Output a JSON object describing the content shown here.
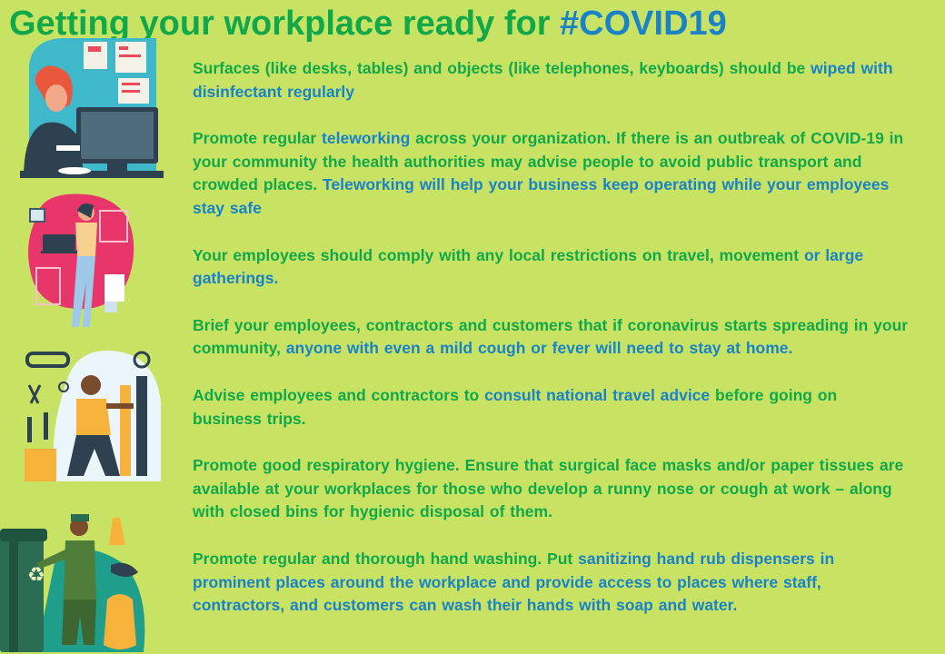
{
  "title": {
    "part1": "Getting your workplace ready for ",
    "part2": "#COVID19"
  },
  "colors": {
    "background": "#c8e364",
    "green_text": "#11a84a",
    "blue_text": "#1a83c6"
  },
  "illustrations": [
    "woman-at-desktop-computer-illustration",
    "woman-with-laptop-illustration",
    "mechanic-with-tools-illustration",
    "sanitation-worker-with-bins-illustration"
  ],
  "paragraphs": [
    {
      "a": "Surfaces (like desks, tables) and objects (like telephones, keyboards) should be ",
      "b": "wiped with disinfectant regularly"
    },
    {
      "a": "Promote regular ",
      "b": "teleworking",
      "c": " across your organization. If there is an outbreak of COVID-19 in your community the health authorities may advise people to avoid public transport and crowded places. ",
      "d": "Teleworking will help your business keep operating while your employees stay safe"
    },
    {
      "a": "Your employees should comply with any local restrictions on travel, movement ",
      "b": "or large gatherings."
    },
    {
      "a": "Brief your employees, contractors and customers that if coronavirus starts spreading in your community, ",
      "b": "anyone with even a mild cough or fever will need to stay at home."
    },
    {
      "a": "Advise employees and contractors to ",
      "b": "consult national travel advice",
      "c": " before going on business trips."
    },
    {
      "a": "Promote good respiratory hygiene. Ensure that surgical face masks and/or paper tissues are available at your workplaces for those who develop a runny nose or cough at work – along with closed bins for hygienic disposal of them."
    },
    {
      "a": "Promote regular and thorough hand washing. Put ",
      "b": "sanitizing hand rub dispensers in prominent places around the workplace and provide access to places where staff, contractors, and customers can wash their hands with soap and water."
    }
  ]
}
